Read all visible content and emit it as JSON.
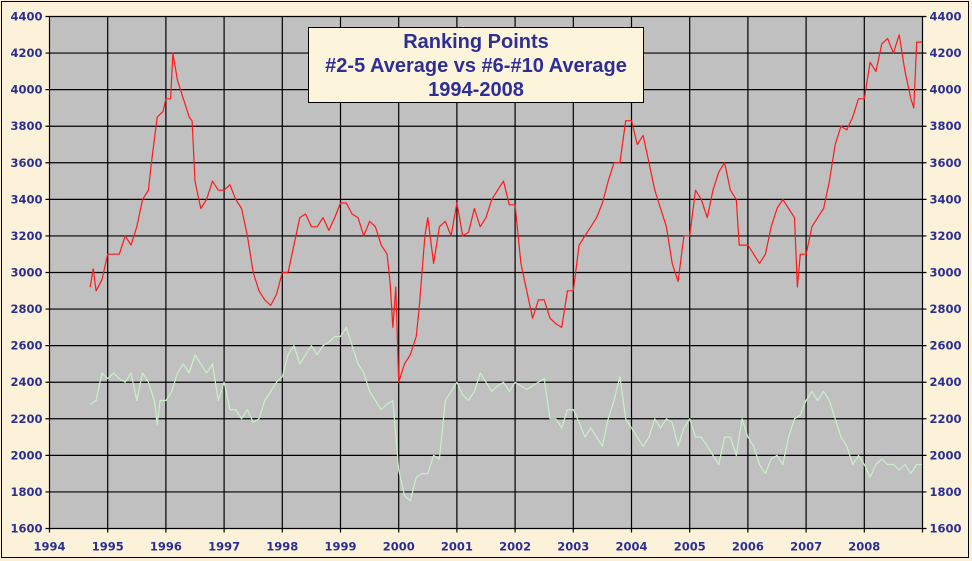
{
  "chart_data": {
    "type": "line",
    "title": [
      "Ranking Points",
      "#2-5 Average vs #6-#10 Average",
      "1994-2008"
    ],
    "xlabel": "",
    "ylabel": "",
    "xlim": [
      1994,
      2009
    ],
    "ylim": [
      1600,
      4400
    ],
    "x_ticks": [
      "1994",
      "1995",
      "1996",
      "1997",
      "1998",
      "1999",
      "2000",
      "2001",
      "2002",
      "2003",
      "2004",
      "2005",
      "2006",
      "2007",
      "2008"
    ],
    "y_ticks": [
      "1600",
      "1800",
      "2000",
      "2200",
      "2400",
      "2600",
      "2800",
      "3000",
      "3200",
      "3400",
      "3600",
      "3800",
      "4000",
      "4200",
      "4400"
    ],
    "grid": true,
    "legend": "none",
    "colors": {
      "plot_bg": "#c0c0c0",
      "axis_text": "#2b2f8f",
      "title_text": "#2d2f96"
    },
    "series": [
      {
        "color": "#ff1a1a",
        "points": [
          [
            1994.7,
            2920
          ],
          [
            1994.75,
            3020
          ],
          [
            1994.8,
            2900
          ],
          [
            1994.9,
            2960
          ],
          [
            1995.0,
            3100
          ],
          [
            1995.2,
            3100
          ],
          [
            1995.3,
            3200
          ],
          [
            1995.4,
            3150
          ],
          [
            1995.5,
            3250
          ],
          [
            1995.6,
            3400
          ],
          [
            1995.7,
            3450
          ],
          [
            1995.75,
            3600
          ],
          [
            1995.85,
            3850
          ],
          [
            1995.95,
            3880
          ],
          [
            1996.0,
            3950
          ],
          [
            1996.08,
            3950
          ],
          [
            1996.12,
            4200
          ],
          [
            1996.2,
            4050
          ],
          [
            1996.3,
            3950
          ],
          [
            1996.4,
            3850
          ],
          [
            1996.45,
            3830
          ],
          [
            1996.5,
            3500
          ],
          [
            1996.6,
            3350
          ],
          [
            1996.7,
            3400
          ],
          [
            1996.8,
            3500
          ],
          [
            1996.9,
            3450
          ],
          [
            1997.0,
            3450
          ],
          [
            1997.1,
            3480
          ],
          [
            1997.2,
            3400
          ],
          [
            1997.3,
            3350
          ],
          [
            1997.4,
            3200
          ],
          [
            1997.5,
            3000
          ],
          [
            1997.6,
            2900
          ],
          [
            1997.7,
            2850
          ],
          [
            1997.8,
            2820
          ],
          [
            1997.9,
            2880
          ],
          [
            1998.0,
            3000
          ],
          [
            1998.1,
            3000
          ],
          [
            1998.2,
            3150
          ],
          [
            1998.3,
            3300
          ],
          [
            1998.4,
            3320
          ],
          [
            1998.5,
            3250
          ],
          [
            1998.6,
            3250
          ],
          [
            1998.7,
            3300
          ],
          [
            1998.8,
            3230
          ],
          [
            1998.9,
            3300
          ],
          [
            1999.0,
            3380
          ],
          [
            1999.1,
            3380
          ],
          [
            1999.2,
            3320
          ],
          [
            1999.3,
            3300
          ],
          [
            1999.4,
            3200
          ],
          [
            1999.5,
            3280
          ],
          [
            1999.6,
            3250
          ],
          [
            1999.7,
            3150
          ],
          [
            1999.8,
            3100
          ],
          [
            1999.85,
            2950
          ],
          [
            1999.9,
            2700
          ],
          [
            1999.95,
            2920
          ],
          [
            2000.0,
            2400
          ],
          [
            2000.1,
            2500
          ],
          [
            2000.2,
            2550
          ],
          [
            2000.3,
            2650
          ],
          [
            2000.35,
            2800
          ],
          [
            2000.45,
            3200
          ],
          [
            2000.5,
            3300
          ],
          [
            2000.6,
            3050
          ],
          [
            2000.7,
            3250
          ],
          [
            2000.8,
            3280
          ],
          [
            2000.9,
            3200
          ],
          [
            2001.0,
            3380
          ],
          [
            2001.1,
            3200
          ],
          [
            2001.2,
            3220
          ],
          [
            2001.3,
            3350
          ],
          [
            2001.4,
            3250
          ],
          [
            2001.5,
            3300
          ],
          [
            2001.6,
            3400
          ],
          [
            2001.7,
            3450
          ],
          [
            2001.8,
            3500
          ],
          [
            2001.9,
            3370
          ],
          [
            2002.0,
            3370
          ],
          [
            2002.1,
            3050
          ],
          [
            2002.2,
            2900
          ],
          [
            2002.3,
            2750
          ],
          [
            2002.4,
            2850
          ],
          [
            2002.5,
            2850
          ],
          [
            2002.6,
            2750
          ],
          [
            2002.7,
            2720
          ],
          [
            2002.8,
            2700
          ],
          [
            2002.9,
            2900
          ],
          [
            2003.0,
            2900
          ],
          [
            2003.1,
            3150
          ],
          [
            2003.2,
            3200
          ],
          [
            2003.3,
            3250
          ],
          [
            2003.4,
            3300
          ],
          [
            2003.5,
            3380
          ],
          [
            2003.6,
            3500
          ],
          [
            2003.7,
            3600
          ],
          [
            2003.8,
            3600
          ],
          [
            2003.9,
            3830
          ],
          [
            2004.0,
            3830
          ],
          [
            2004.1,
            3700
          ],
          [
            2004.2,
            3750
          ],
          [
            2004.3,
            3600
          ],
          [
            2004.4,
            3450
          ],
          [
            2004.5,
            3350
          ],
          [
            2004.6,
            3250
          ],
          [
            2004.7,
            3050
          ],
          [
            2004.8,
            2950
          ],
          [
            2004.9,
            3200
          ],
          [
            2005.0,
            3200
          ],
          [
            2005.1,
            3450
          ],
          [
            2005.2,
            3400
          ],
          [
            2005.3,
            3300
          ],
          [
            2005.4,
            3450
          ],
          [
            2005.5,
            3550
          ],
          [
            2005.6,
            3600
          ],
          [
            2005.7,
            3450
          ],
          [
            2005.8,
            3400
          ],
          [
            2005.85,
            3150
          ],
          [
            2006.0,
            3150
          ],
          [
            2006.1,
            3100
          ],
          [
            2006.2,
            3050
          ],
          [
            2006.3,
            3100
          ],
          [
            2006.4,
            3250
          ],
          [
            2006.5,
            3350
          ],
          [
            2006.6,
            3400
          ],
          [
            2006.7,
            3350
          ],
          [
            2006.8,
            3300
          ],
          [
            2006.85,
            2920
          ],
          [
            2006.9,
            3100
          ],
          [
            2007.0,
            3100
          ],
          [
            2007.1,
            3250
          ],
          [
            2007.2,
            3300
          ],
          [
            2007.3,
            3350
          ],
          [
            2007.4,
            3500
          ],
          [
            2007.5,
            3700
          ],
          [
            2007.6,
            3800
          ],
          [
            2007.7,
            3780
          ],
          [
            2007.8,
            3850
          ],
          [
            2007.9,
            3950
          ],
          [
            2008.0,
            3950
          ],
          [
            2008.1,
            4150
          ],
          [
            2008.2,
            4100
          ],
          [
            2008.3,
            4250
          ],
          [
            2008.4,
            4280
          ],
          [
            2008.5,
            4200
          ],
          [
            2008.6,
            4300
          ],
          [
            2008.7,
            4100
          ],
          [
            2008.8,
            3950
          ],
          [
            2008.85,
            3900
          ],
          [
            2008.9,
            4260
          ],
          [
            2009.0,
            4260
          ]
        ]
      },
      {
        "color": "#c8f0c8",
        "points": [
          [
            1994.7,
            2280
          ],
          [
            1994.8,
            2300
          ],
          [
            1994.9,
            2450
          ],
          [
            1995.0,
            2420
          ],
          [
            1995.1,
            2450
          ],
          [
            1995.2,
            2420
          ],
          [
            1995.3,
            2400
          ],
          [
            1995.4,
            2450
          ],
          [
            1995.5,
            2300
          ],
          [
            1995.6,
            2450
          ],
          [
            1995.7,
            2400
          ],
          [
            1995.8,
            2300
          ],
          [
            1995.85,
            2170
          ],
          [
            1995.9,
            2300
          ],
          [
            1996.0,
            2300
          ],
          [
            1996.1,
            2350
          ],
          [
            1996.2,
            2450
          ],
          [
            1996.3,
            2500
          ],
          [
            1996.4,
            2450
          ],
          [
            1996.5,
            2550
          ],
          [
            1996.6,
            2500
          ],
          [
            1996.7,
            2450
          ],
          [
            1996.8,
            2500
          ],
          [
            1996.9,
            2300
          ],
          [
            1997.0,
            2400
          ],
          [
            1997.1,
            2250
          ],
          [
            1997.2,
            2250
          ],
          [
            1997.3,
            2200
          ],
          [
            1997.4,
            2250
          ],
          [
            1997.5,
            2180
          ],
          [
            1997.6,
            2200
          ],
          [
            1997.7,
            2300
          ],
          [
            1997.8,
            2350
          ],
          [
            1997.9,
            2400
          ],
          [
            1998.0,
            2430
          ],
          [
            1998.1,
            2550
          ],
          [
            1998.2,
            2600
          ],
          [
            1998.3,
            2500
          ],
          [
            1998.4,
            2550
          ],
          [
            1998.5,
            2600
          ],
          [
            1998.6,
            2550
          ],
          [
            1998.7,
            2600
          ],
          [
            1998.8,
            2620
          ],
          [
            1998.9,
            2650
          ],
          [
            1999.0,
            2650
          ],
          [
            1999.1,
            2700
          ],
          [
            1999.2,
            2600
          ],
          [
            1999.3,
            2500
          ],
          [
            1999.4,
            2450
          ],
          [
            1999.5,
            2350
          ],
          [
            1999.6,
            2300
          ],
          [
            1999.7,
            2250
          ],
          [
            1999.8,
            2280
          ],
          [
            1999.9,
            2300
          ],
          [
            2000.0,
            1920
          ],
          [
            2000.1,
            1780
          ],
          [
            2000.2,
            1750
          ],
          [
            2000.3,
            1880
          ],
          [
            2000.4,
            1900
          ],
          [
            2000.5,
            1900
          ],
          [
            2000.6,
            2000
          ],
          [
            2000.7,
            1980
          ],
          [
            2000.8,
            2300
          ],
          [
            2000.9,
            2350
          ],
          [
            2001.0,
            2400
          ],
          [
            2001.1,
            2330
          ],
          [
            2001.2,
            2300
          ],
          [
            2001.3,
            2350
          ],
          [
            2001.4,
            2450
          ],
          [
            2001.5,
            2400
          ],
          [
            2001.6,
            2350
          ],
          [
            2001.7,
            2380
          ],
          [
            2001.8,
            2400
          ],
          [
            2001.9,
            2350
          ],
          [
            2002.0,
            2400
          ],
          [
            2002.1,
            2380
          ],
          [
            2002.2,
            2360
          ],
          [
            2002.3,
            2380
          ],
          [
            2002.4,
            2400
          ],
          [
            2002.5,
            2420
          ],
          [
            2002.6,
            2200
          ],
          [
            2002.7,
            2200
          ],
          [
            2002.8,
            2150
          ],
          [
            2002.9,
            2250
          ],
          [
            2003.0,
            2250
          ],
          [
            2003.1,
            2180
          ],
          [
            2003.2,
            2100
          ],
          [
            2003.3,
            2150
          ],
          [
            2003.4,
            2100
          ],
          [
            2003.5,
            2050
          ],
          [
            2003.6,
            2200
          ],
          [
            2003.7,
            2300
          ],
          [
            2003.8,
            2430
          ],
          [
            2003.9,
            2200
          ],
          [
            2004.0,
            2150
          ],
          [
            2004.1,
            2100
          ],
          [
            2004.2,
            2050
          ],
          [
            2004.3,
            2100
          ],
          [
            2004.4,
            2200
          ],
          [
            2004.5,
            2150
          ],
          [
            2004.6,
            2200
          ],
          [
            2004.7,
            2180
          ],
          [
            2004.8,
            2050
          ],
          [
            2004.9,
            2150
          ],
          [
            2005.0,
            2200
          ],
          [
            2005.1,
            2100
          ],
          [
            2005.2,
            2100
          ],
          [
            2005.3,
            2050
          ],
          [
            2005.4,
            2000
          ],
          [
            2005.5,
            1950
          ],
          [
            2005.6,
            2100
          ],
          [
            2005.7,
            2100
          ],
          [
            2005.8,
            2000
          ],
          [
            2005.9,
            2200
          ],
          [
            2006.0,
            2100
          ],
          [
            2006.1,
            2050
          ],
          [
            2006.2,
            1950
          ],
          [
            2006.3,
            1900
          ],
          [
            2006.4,
            1980
          ],
          [
            2006.5,
            2000
          ],
          [
            2006.6,
            1950
          ],
          [
            2006.7,
            2100
          ],
          [
            2006.8,
            2200
          ],
          [
            2006.9,
            2220
          ],
          [
            2007.0,
            2300
          ],
          [
            2007.1,
            2350
          ],
          [
            2007.2,
            2300
          ],
          [
            2007.3,
            2350
          ],
          [
            2007.4,
            2300
          ],
          [
            2007.5,
            2200
          ],
          [
            2007.6,
            2100
          ],
          [
            2007.7,
            2050
          ],
          [
            2007.8,
            1950
          ],
          [
            2007.9,
            2000
          ],
          [
            2008.0,
            1950
          ],
          [
            2008.1,
            1880
          ],
          [
            2008.2,
            1950
          ],
          [
            2008.3,
            1980
          ],
          [
            2008.4,
            1950
          ],
          [
            2008.5,
            1950
          ],
          [
            2008.6,
            1920
          ],
          [
            2008.7,
            1950
          ],
          [
            2008.8,
            1900
          ],
          [
            2008.9,
            1950
          ],
          [
            2009.0,
            1950
          ]
        ]
      }
    ]
  }
}
